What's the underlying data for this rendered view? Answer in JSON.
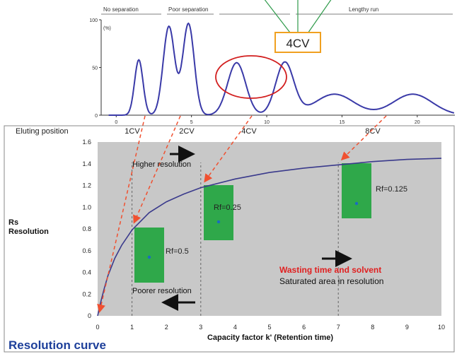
{
  "chromatogram": {
    "section_labels": [
      "No separation",
      "Poor separation",
      "",
      "Lengthy run"
    ],
    "y_unit": "(%)",
    "y_ticks": [
      {
        "value": 0,
        "label": "0"
      },
      {
        "value": 50,
        "label": "50"
      },
      {
        "value": 100,
        "label": "100"
      }
    ],
    "x_ticks": [
      {
        "value": 0,
        "label": "0"
      },
      {
        "value": 5,
        "label": "5"
      },
      {
        "value": 10,
        "label": "10"
      },
      {
        "value": 15,
        "label": "15"
      },
      {
        "value": 20,
        "label": "20"
      }
    ],
    "xlim": [
      -1,
      22.5
    ],
    "ylim": [
      0,
      100
    ],
    "callout": "4CV"
  },
  "chart_data": {
    "type": "line",
    "title": "Resolution curve",
    "xlabel": "Capacity factor k' (Retention time)",
    "ylabel_lines": [
      "Rs",
      "Resolution"
    ],
    "xlim": [
      0,
      10
    ],
    "ylim": [
      0,
      1.6
    ],
    "x_ticks": [
      0,
      1,
      2,
      3,
      4,
      5,
      6,
      7,
      8,
      9,
      10
    ],
    "y_ticks": [
      "0",
      "0.2",
      "0.4",
      "0.6",
      "0.8",
      "1.0",
      "1.2",
      "1.4",
      "1.6"
    ],
    "grid": false,
    "series": [
      {
        "x": [
          0,
          0.1,
          0.2,
          0.3,
          0.5,
          0.7,
          1.0,
          1.5,
          2.0,
          2.5,
          3.0,
          4.0,
          5.0,
          6.0,
          7.0,
          8.0,
          9.0,
          10.0
        ],
        "y": [
          0,
          0.14,
          0.26,
          0.37,
          0.53,
          0.65,
          0.79,
          0.95,
          1.05,
          1.12,
          1.18,
          1.26,
          1.32,
          1.36,
          1.39,
          1.42,
          1.44,
          1.45
        ]
      }
    ],
    "eluting_position": {
      "label": "Eluting position",
      "markers": [
        {
          "x": 1,
          "label": "1CV"
        },
        {
          "x": 3,
          "label": "2CV"
        },
        {
          "x": 3,
          "label": "4CV"
        },
        {
          "x": 7,
          "label": "8CV"
        }
      ]
    },
    "tlc_plates": [
      {
        "label": "Rf=0.5",
        "x": 1.5,
        "spot": 0.5
      },
      {
        "label": "Rf=0.25",
        "x": 3.5,
        "spot": 0.25
      },
      {
        "label": "Rf=0.125",
        "x": 7.5,
        "spot": 0.125
      }
    ],
    "annotations": [
      {
        "text": "Higher resolution",
        "color": "#000000"
      },
      {
        "text": "Poorer resolution",
        "color": "#000000"
      },
      {
        "text": "Wasting time and solvent",
        "color": "#e02020"
      },
      {
        "text": "Saturated area in resolution",
        "color": "#000000"
      }
    ],
    "colors": {
      "curve": "#3a3a8c",
      "plot_bg": "#c8c8c8",
      "arrow_dash": "#f05030",
      "plate": "#2fa84a",
      "callout_border": "#f0a020",
      "title": "#1d3f9a"
    }
  }
}
